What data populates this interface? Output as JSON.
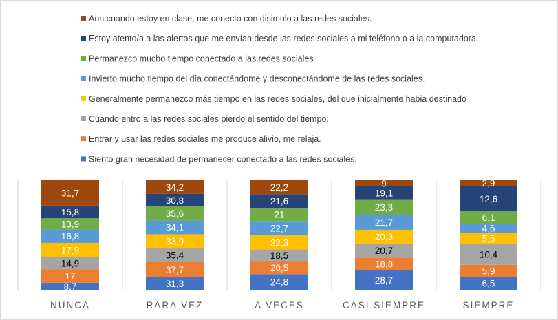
{
  "chart_data": {
    "type": "bar",
    "stacked": true,
    "categories": [
      "NUNCA",
      "RARA VEZ",
      "A VECES",
      "CASI SIEMPRE",
      "SIEMPRE"
    ],
    "series": [
      {
        "name": "Siento gran necesidad de permanecer conectado a las redes sociales.",
        "color": "#4472c4",
        "label_color": "#ffffff",
        "values": [
          8.7,
          31.3,
          24.8,
          28.7,
          6.5
        ]
      },
      {
        "name": "Entrar y usar las redes sociales me produce alivio, me relaja.",
        "color": "#ed7d31",
        "label_color": "#ffffff",
        "values": [
          17,
          37.7,
          20.5,
          18.8,
          5.9
        ]
      },
      {
        "name": "Cuando entro a las redes sociales pierdo el sentido del tiempo.",
        "color": "#a5a5a5",
        "label_color": "#000000",
        "values": [
          14.9,
          35.4,
          18.5,
          20.7,
          10.4
        ]
      },
      {
        "name": "Generalmente permanezco más tiempo en las redes sociales, del que inicialmente habia destinado",
        "color": "#ffc000",
        "label_color": "#ffffff",
        "values": [
          17.9,
          33.9,
          22.3,
          20.3,
          5.5
        ]
      },
      {
        "name": "Invierto mucho tiempo del día conectándome y desconectándome de las redes sociales.",
        "color": "#5b9bd5",
        "label_color": "#ffffff",
        "values": [
          16.8,
          34.1,
          22.7,
          21.7,
          4.6
        ]
      },
      {
        "name": "Permanezco mucho tiempo conectado a las redes sociales",
        "color": "#70ad47",
        "label_color": "#ffffff",
        "values": [
          13.9,
          35.6,
          21,
          23.3,
          6.1
        ]
      },
      {
        "name": "Estoy atento/a a las alertas que me envían desde las redes sociales a mi teléfono o a la computadora.",
        "color": "#264478",
        "label_color": "#ffffff",
        "values": [
          15.8,
          30.8,
          21.6,
          19.1,
          12.6
        ]
      },
      {
        "name": "Aun cuando estoy en clase, me conecto con disimulo a las redes sociales.",
        "color": "#9e480e",
        "label_color": "#ffffff",
        "values": [
          31.7,
          34.2,
          22.2,
          9,
          2.9
        ]
      }
    ],
    "legend_position": "top",
    "grid": true
  }
}
